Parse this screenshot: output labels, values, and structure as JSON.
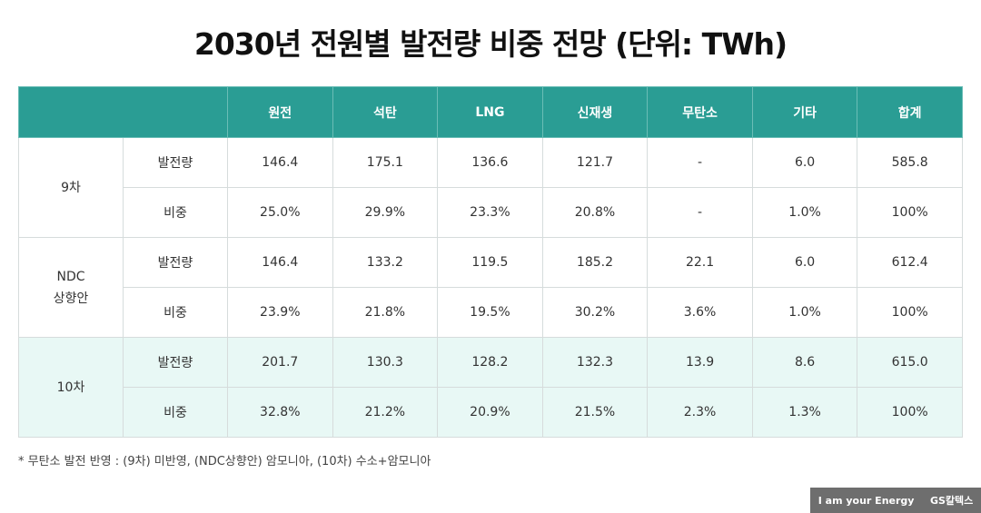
{
  "title": "2030년 전원별 발전량 비중 전망 (단위: TWh)",
  "table": {
    "columns": [
      "원전",
      "석탄",
      "LNG",
      "신재생",
      "무탄소",
      "기타",
      "합계"
    ],
    "groups": [
      {
        "label": [
          "9차"
        ],
        "rows": [
          {
            "label": "발전량",
            "cells": [
              "146.4",
              "175.1",
              "136.6",
              "121.7",
              "-",
              "6.0",
              "585.8"
            ]
          },
          {
            "label": "비중",
            "cells": [
              "25.0%",
              "29.9%",
              "23.3%",
              "20.8%",
              "-",
              "1.0%",
              "100%"
            ]
          }
        ]
      },
      {
        "label": [
          "NDC",
          "상향안"
        ],
        "rows": [
          {
            "label": "발전량",
            "cells": [
              "146.4",
              "133.2",
              "119.5",
              "185.2",
              "22.1",
              "6.0",
              "612.4"
            ]
          },
          {
            "label": "비중",
            "cells": [
              "23.9%",
              "21.8%",
              "19.5%",
              "30.2%",
              "3.6%",
              "1.0%",
              "100%"
            ]
          }
        ]
      },
      {
        "label": [
          "10차"
        ],
        "rows": [
          {
            "label": "발전량",
            "cells": [
              "201.7",
              "130.3",
              "128.2",
              "132.3",
              "13.9",
              "8.6",
              "615.0"
            ]
          },
          {
            "label": "비중",
            "cells": [
              "32.8%",
              "21.2%",
              "20.9%",
              "21.5%",
              "2.3%",
              "1.3%",
              "100%"
            ]
          }
        ]
      }
    ]
  },
  "footnote": "* 무탄소 발전 반영 : (9차) 미반영, (NDC상향안) 암모니아, (10차) 수소+암모니아",
  "logo": {
    "slogan": "I am your Energy",
    "brand": "GS칼텍스"
  }
}
